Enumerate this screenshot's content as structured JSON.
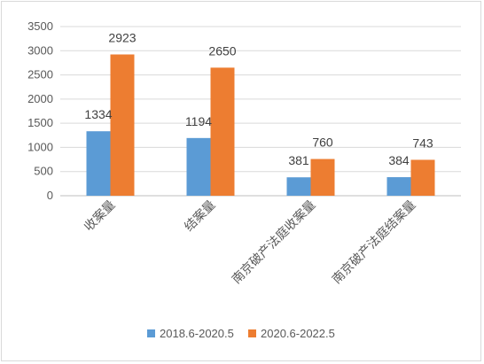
{
  "chart_data": {
    "type": "bar",
    "categories": [
      "收案量",
      "结案量",
      "南京破产法庭收案量",
      "南京破产法庭结案量"
    ],
    "series": [
      {
        "name": "2018.6-2020.5",
        "color": "#5b9bd5",
        "values": [
          1334,
          1194,
          381,
          384
        ]
      },
      {
        "name": "2020.6-2022.5",
        "color": "#ed7d31",
        "values": [
          2923,
          2650,
          760,
          743
        ]
      }
    ],
    "ylim": [
      0,
      3500
    ],
    "yticks": [
      0,
      500,
      1000,
      1500,
      2000,
      2500,
      3000,
      3500
    ],
    "grid": true,
    "legend_position": "bottom"
  }
}
